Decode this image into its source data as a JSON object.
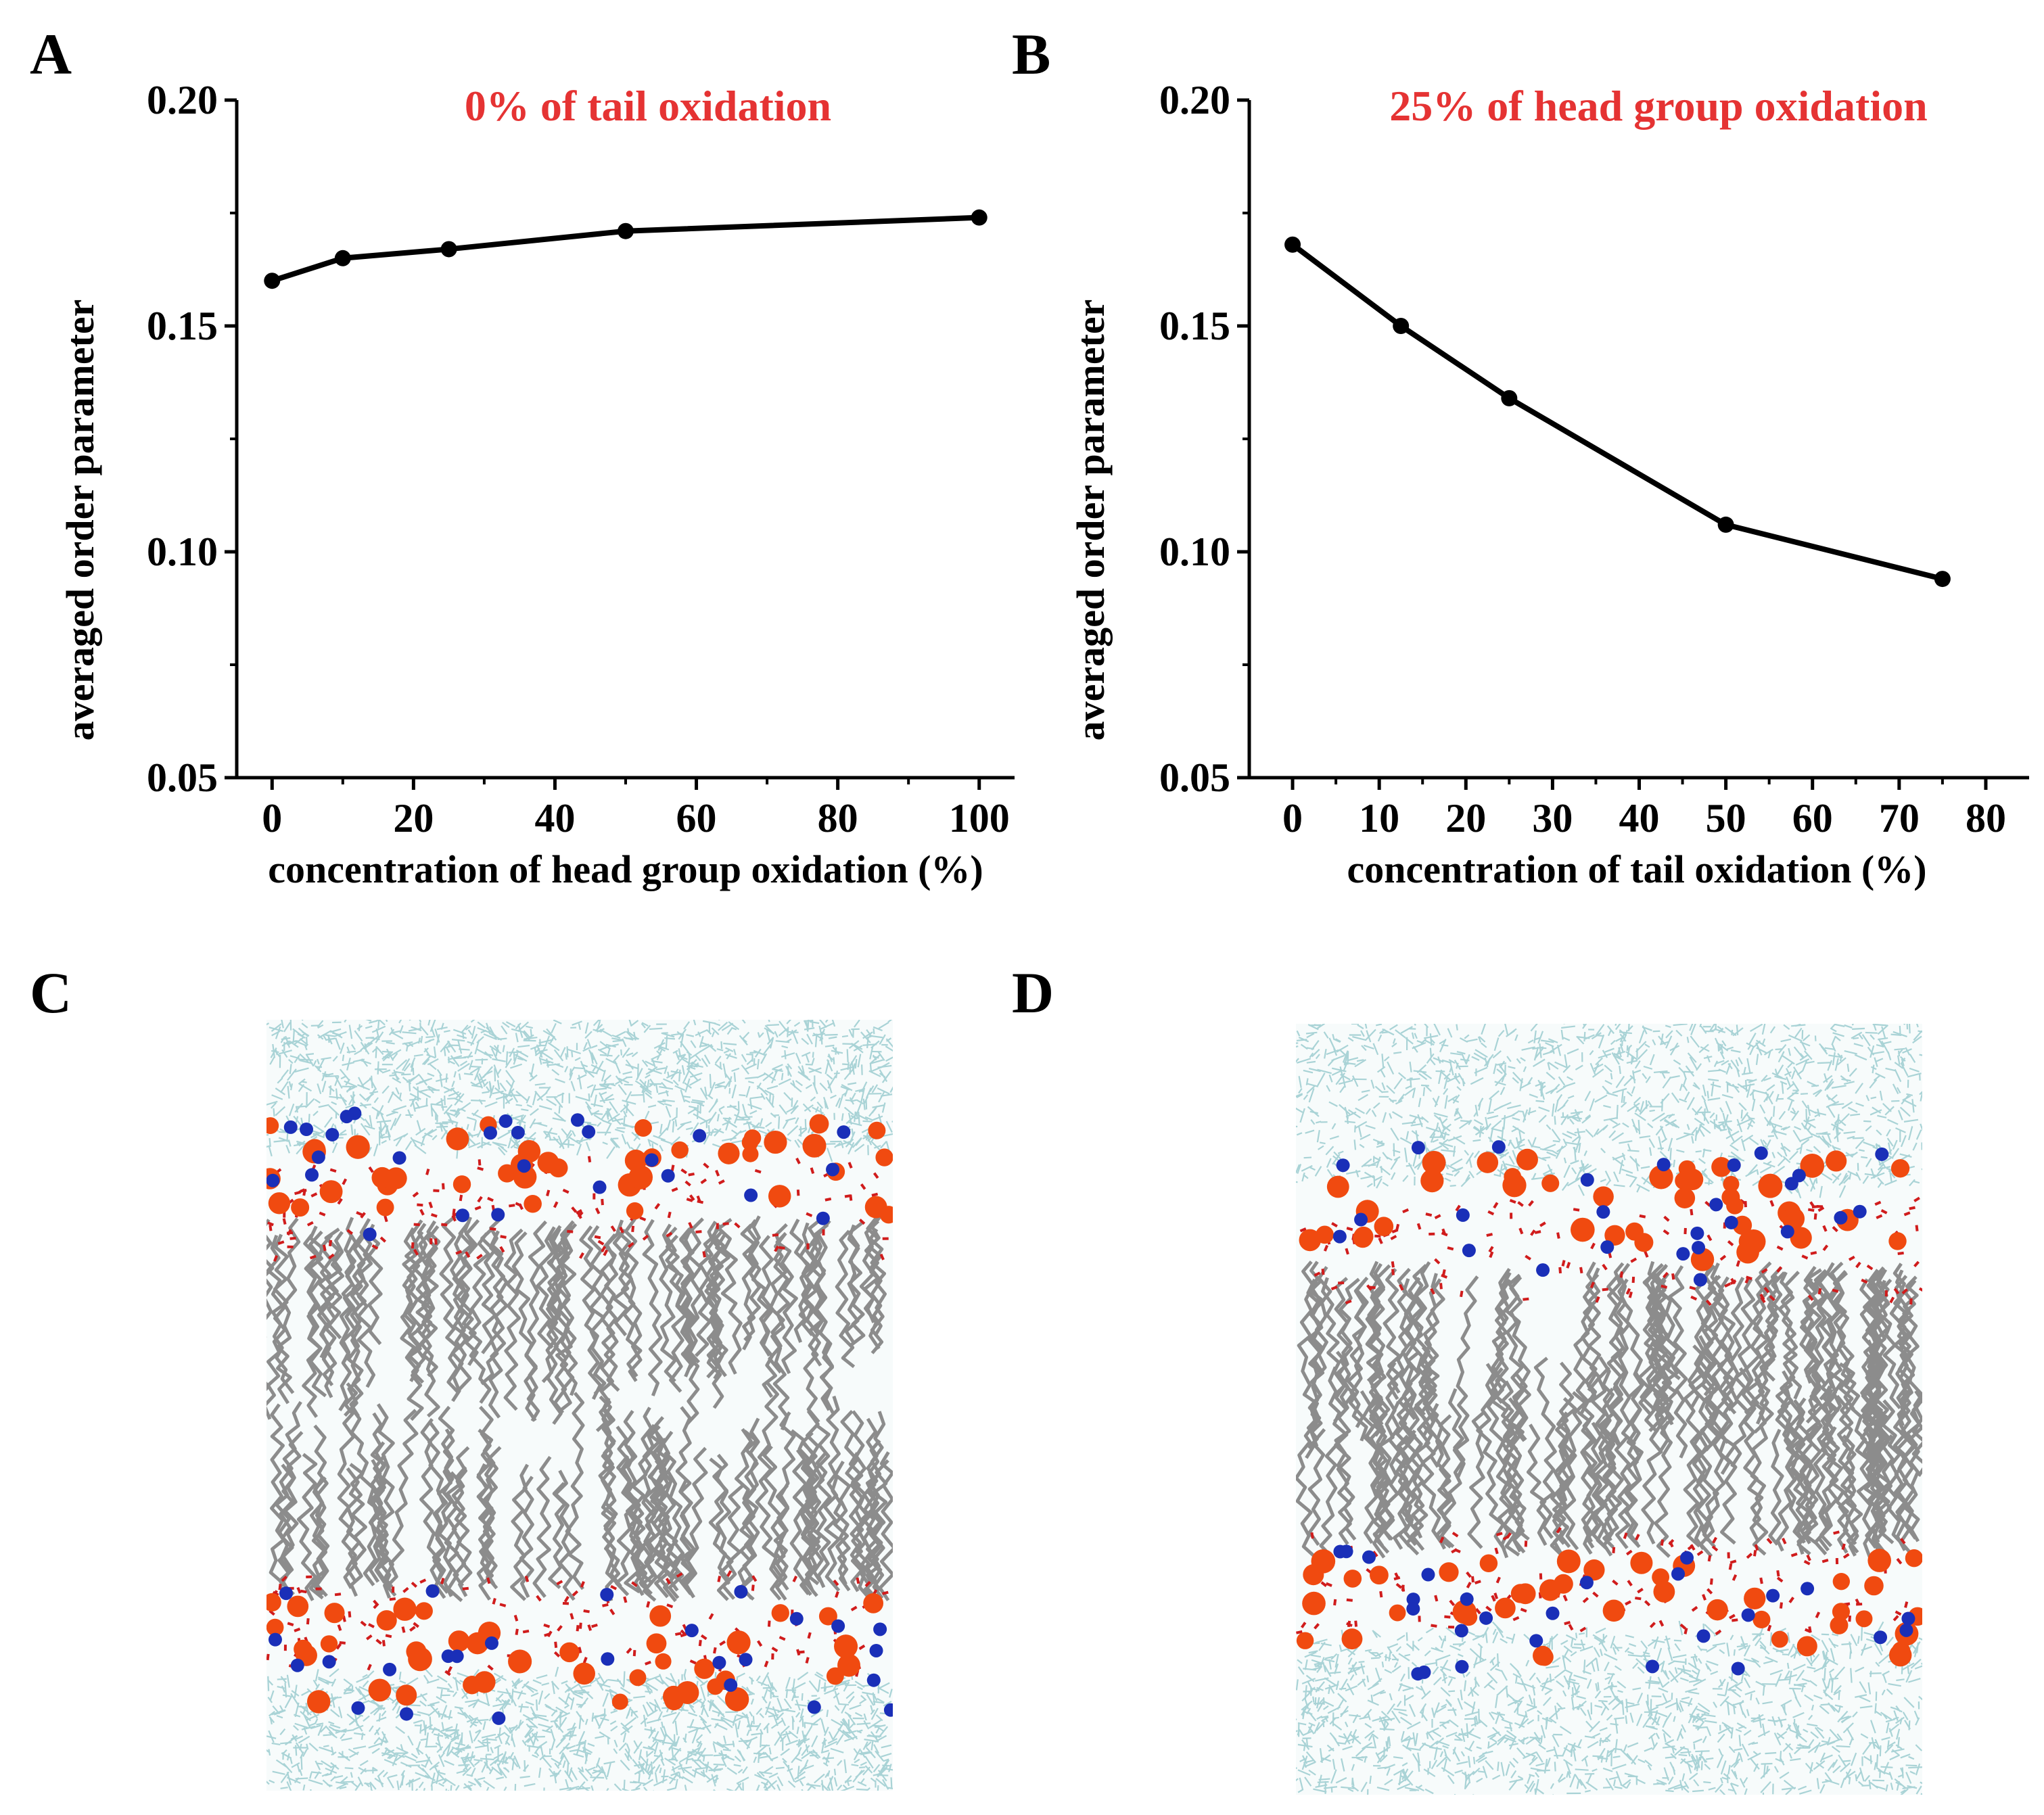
{
  "panels": {
    "A": "A",
    "B": "B",
    "C": "C",
    "D": "D"
  },
  "chart_data": [
    {
      "type": "line",
      "title": "0% of tail oxidation",
      "xlabel": "concentration  of head  group  oxidation  (%)",
      "ylabel": "averaged order parameter",
      "x": [
        0,
        10,
        25,
        50,
        100
      ],
      "y": [
        0.16,
        0.165,
        0.167,
        0.171,
        0.174
      ],
      "xlim": [
        -5,
        105
      ],
      "ylim": [
        0.05,
        0.2
      ],
      "xticks": [
        0,
        20,
        40,
        60,
        80,
        100
      ],
      "yticks": [
        0.05,
        0.1,
        0.15,
        0.2
      ],
      "ytick_labels": [
        "0.05",
        "0.10",
        "0.15",
        "0.20"
      ],
      "series_color": "#000000",
      "title_color": "#e53333"
    },
    {
      "type": "line",
      "title": "25% of head group oxidation",
      "xlabel": "concentration  of tail  oxidation  (%)",
      "ylabel": "averaged order parameter",
      "x": [
        0,
        12.5,
        25,
        50,
        75
      ],
      "y": [
        0.168,
        0.15,
        0.134,
        0.106,
        0.094
      ],
      "xlim": [
        -5,
        85
      ],
      "ylim": [
        0.05,
        0.2
      ],
      "xticks": [
        0,
        10,
        20,
        30,
        40,
        50,
        60,
        70,
        80
      ],
      "yticks": [
        0.05,
        0.1,
        0.15,
        0.2
      ],
      "ytick_labels": [
        "0.05",
        "0.10",
        "0.15",
        "0.20"
      ],
      "series_color": "#000000",
      "title_color": "#e53333"
    }
  ],
  "snapshots": {
    "C": {
      "water_color": "#a9d3d6",
      "tail_color": "#8c8c8c",
      "head_color": "#f04a10",
      "nitrogen_color": "#1a2fb8",
      "oxygen_color": "#d01c1c"
    },
    "D": {
      "water_color": "#a9d3d6",
      "tail_color": "#8c8c8c",
      "head_color": "#f04a10",
      "nitrogen_color": "#1a2fb8",
      "oxygen_color": "#d01c1c"
    }
  }
}
